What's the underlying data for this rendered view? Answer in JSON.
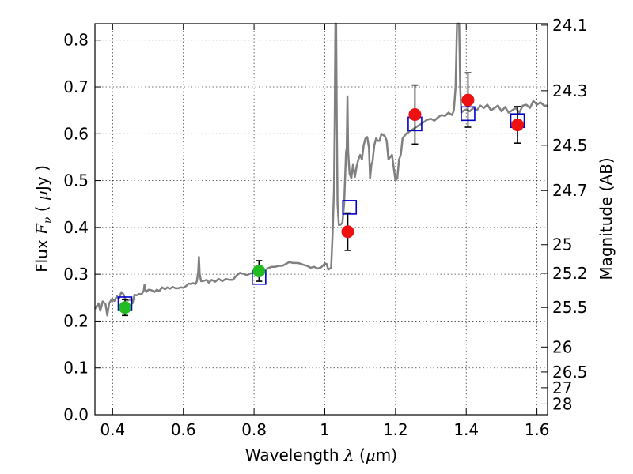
{
  "chart_data": {
    "type": "scatter",
    "title": "",
    "xlabel": {
      "prefix": "Wavelength",
      "symbol": "λ",
      "unit_open": " (",
      "unit_mu": "μ",
      "unit_rest": "m)"
    },
    "ylabel": {
      "prefix": "Flux",
      "symbol": "F",
      "subscript": "ν",
      "unit_open": " ( ",
      "unit_mu": "μ",
      "unit_rest": "Jy )"
    },
    "y2label": "Magnitude (AB)",
    "xlim": [
      0.35,
      1.63
    ],
    "ylim": [
      0.0,
      0.835
    ],
    "grid": true,
    "xticks": [
      0.4,
      0.6,
      0.8,
      1.0,
      1.2,
      1.4,
      1.6
    ],
    "xtick_labels": [
      "0.4",
      "0.6",
      "0.8",
      "1",
      "1.2",
      "1.4",
      "1.6"
    ],
    "yticks": [
      0.0,
      0.1,
      0.2,
      0.3,
      0.4,
      0.5,
      0.6,
      0.7,
      0.8
    ],
    "ytick_labels": [
      "0.0",
      "0.1",
      "0.2",
      "0.3",
      "0.4",
      "0.5",
      "0.6",
      "0.7",
      "0.8"
    ],
    "y2ticks": [
      24.1,
      24.3,
      24.5,
      24.7,
      25,
      25.2,
      25.5,
      26,
      26.5,
      27,
      28
    ],
    "y2tick_labels": [
      "24.1",
      "24.3",
      "24.5",
      "24.7",
      "25",
      "25.2",
      "25.5",
      "26",
      "26.5",
      "27",
      "28"
    ],
    "series": [
      {
        "kind": "model_spectrum",
        "color": "#808080",
        "points": [
          [
            0.35,
            0.226
          ],
          [
            0.36,
            0.238
          ],
          [
            0.365,
            0.222
          ],
          [
            0.372,
            0.242
          ],
          [
            0.38,
            0.236
          ],
          [
            0.385,
            0.212
          ],
          [
            0.39,
            0.238
          ],
          [
            0.398,
            0.247
          ],
          [
            0.405,
            0.243
          ],
          [
            0.412,
            0.253
          ],
          [
            0.418,
            0.248
          ],
          [
            0.425,
            0.262
          ],
          [
            0.43,
            0.258
          ],
          [
            0.437,
            0.245
          ],
          [
            0.443,
            0.244
          ],
          [
            0.45,
            0.247
          ],
          [
            0.456,
            0.238
          ],
          [
            0.462,
            0.256
          ],
          [
            0.468,
            0.255
          ],
          [
            0.475,
            0.258
          ],
          [
            0.482,
            0.257
          ],
          [
            0.488,
            0.265
          ],
          [
            0.49,
            0.277
          ],
          [
            0.495,
            0.262
          ],
          [
            0.502,
            0.267
          ],
          [
            0.51,
            0.266
          ],
          [
            0.518,
            0.262
          ],
          [
            0.525,
            0.267
          ],
          [
            0.532,
            0.264
          ],
          [
            0.54,
            0.272
          ],
          [
            0.548,
            0.268
          ],
          [
            0.555,
            0.272
          ],
          [
            0.562,
            0.269
          ],
          [
            0.57,
            0.273
          ],
          [
            0.578,
            0.27
          ],
          [
            0.585,
            0.27
          ],
          [
            0.592,
            0.272
          ],
          [
            0.6,
            0.271
          ],
          [
            0.608,
            0.275
          ],
          [
            0.615,
            0.28
          ],
          [
            0.622,
            0.279
          ],
          [
            0.628,
            0.281
          ],
          [
            0.634,
            0.279
          ],
          [
            0.638,
            0.284
          ],
          [
            0.642,
            0.305
          ],
          [
            0.644,
            0.337
          ],
          [
            0.646,
            0.302
          ],
          [
            0.65,
            0.285
          ],
          [
            0.658,
            0.286
          ],
          [
            0.666,
            0.288
          ],
          [
            0.672,
            0.282
          ],
          [
            0.68,
            0.288
          ],
          [
            0.69,
            0.284
          ],
          [
            0.7,
            0.29
          ],
          [
            0.71,
            0.285
          ],
          [
            0.72,
            0.29
          ],
          [
            0.73,
            0.288
          ],
          [
            0.74,
            0.288
          ],
          [
            0.75,
            0.297
          ],
          [
            0.76,
            0.303
          ],
          [
            0.77,
            0.301
          ],
          [
            0.78,
            0.298
          ],
          [
            0.79,
            0.302
          ],
          [
            0.8,
            0.302
          ],
          [
            0.81,
            0.304
          ],
          [
            0.82,
            0.31
          ],
          [
            0.83,
            0.308
          ],
          [
            0.84,
            0.313
          ],
          [
            0.85,
            0.316
          ],
          [
            0.86,
            0.316
          ],
          [
            0.87,
            0.318
          ],
          [
            0.88,
            0.318
          ],
          [
            0.89,
            0.322
          ],
          [
            0.9,
            0.326
          ],
          [
            0.91,
            0.324
          ],
          [
            0.92,
            0.324
          ],
          [
            0.93,
            0.323
          ],
          [
            0.94,
            0.32
          ],
          [
            0.95,
            0.318
          ],
          [
            0.96,
            0.314
          ],
          [
            0.97,
            0.316
          ],
          [
            0.98,
            0.312
          ],
          [
            0.99,
            0.315
          ],
          [
            1.0,
            0.323
          ],
          [
            1.005,
            0.322
          ],
          [
            1.01,
            0.31
          ],
          [
            1.018,
            0.314
          ],
          [
            1.022,
            0.385
          ],
          [
            1.026,
            0.48
          ],
          [
            1.028,
            0.62
          ],
          [
            1.03,
            0.835
          ],
          [
            1.032,
            0.835
          ],
          [
            1.034,
            0.615
          ],
          [
            1.036,
            0.45
          ],
          [
            1.04,
            0.405
          ],
          [
            1.045,
            0.406
          ],
          [
            1.05,
            0.41
          ],
          [
            1.055,
            0.452
          ],
          [
            1.06,
            0.56
          ],
          [
            1.062,
            0.57
          ],
          [
            1.064,
            0.68
          ],
          [
            1.066,
            0.56
          ],
          [
            1.07,
            0.515
          ],
          [
            1.075,
            0.505
          ],
          [
            1.08,
            0.535
          ],
          [
            1.085,
            0.508
          ],
          [
            1.09,
            0.53
          ],
          [
            1.095,
            0.545
          ],
          [
            1.1,
            0.555
          ],
          [
            1.105,
            0.545
          ],
          [
            1.11,
            0.575
          ],
          [
            1.115,
            0.59
          ],
          [
            1.12,
            0.593
          ],
          [
            1.125,
            0.57
          ],
          [
            1.128,
            0.505
          ],
          [
            1.132,
            0.535
          ],
          [
            1.135,
            0.54
          ],
          [
            1.14,
            0.575
          ],
          [
            1.145,
            0.59
          ],
          [
            1.15,
            0.585
          ],
          [
            1.155,
            0.585
          ],
          [
            1.16,
            0.6
          ],
          [
            1.17,
            0.595
          ],
          [
            1.175,
            0.585
          ],
          [
            1.18,
            0.545
          ],
          [
            1.185,
            0.55
          ],
          [
            1.19,
            0.555
          ],
          [
            1.2,
            0.5
          ],
          [
            1.205,
            0.505
          ],
          [
            1.21,
            0.545
          ],
          [
            1.215,
            0.555
          ],
          [
            1.22,
            0.59
          ],
          [
            1.23,
            0.6
          ],
          [
            1.24,
            0.605
          ],
          [
            1.25,
            0.61
          ],
          [
            1.26,
            0.615
          ],
          [
            1.27,
            0.62
          ],
          [
            1.28,
            0.625
          ],
          [
            1.29,
            0.63
          ],
          [
            1.3,
            0.632
          ],
          [
            1.31,
            0.628
          ],
          [
            1.32,
            0.635
          ],
          [
            1.33,
            0.64
          ],
          [
            1.34,
            0.638
          ],
          [
            1.35,
            0.645
          ],
          [
            1.36,
            0.64
          ],
          [
            1.365,
            0.65
          ],
          [
            1.37,
            0.7
          ],
          [
            1.374,
            0.835
          ],
          [
            1.38,
            0.835
          ],
          [
            1.383,
            0.7
          ],
          [
            1.386,
            0.645
          ],
          [
            1.39,
            0.648
          ],
          [
            1.4,
            0.652
          ],
          [
            1.41,
            0.648
          ],
          [
            1.42,
            0.655
          ],
          [
            1.43,
            0.65
          ],
          [
            1.44,
            0.66
          ],
          [
            1.45,
            0.655
          ],
          [
            1.46,
            0.662
          ],
          [
            1.47,
            0.65
          ],
          [
            1.48,
            0.655
          ],
          [
            1.49,
            0.66
          ],
          [
            1.5,
            0.648
          ],
          [
            1.51,
            0.657
          ],
          [
            1.52,
            0.645
          ],
          [
            1.53,
            0.65
          ],
          [
            1.54,
            0.655
          ],
          [
            1.55,
            0.645
          ],
          [
            1.56,
            0.66
          ],
          [
            1.57,
            0.662
          ],
          [
            1.58,
            0.655
          ],
          [
            1.59,
            0.67
          ],
          [
            1.6,
            0.662
          ],
          [
            1.61,
            0.667
          ],
          [
            1.62,
            0.66
          ],
          [
            1.63,
            0.66
          ]
        ]
      },
      {
        "kind": "model_photometry",
        "marker": "open-square",
        "color": "#0000cc",
        "x": [
          0.435,
          0.814,
          1.07,
          1.255,
          1.405,
          1.545
        ],
        "y": [
          0.237,
          0.293,
          0.443,
          0.621,
          0.643,
          0.628
        ]
      },
      {
        "kind": "observed_photometry",
        "marker": "filled-circle",
        "x": [
          0.435,
          0.814,
          1.065,
          1.255,
          1.405,
          1.545
        ],
        "y": [
          0.229,
          0.307,
          0.391,
          0.641,
          0.672,
          0.619
        ],
        "yerr": [
          0.017,
          0.022,
          0.04,
          0.063,
          0.058,
          0.039
        ],
        "colors": [
          "#22bb22",
          "#22bb22",
          "#ee1111",
          "#ee1111",
          "#ee1111",
          "#ee1111"
        ]
      }
    ]
  }
}
